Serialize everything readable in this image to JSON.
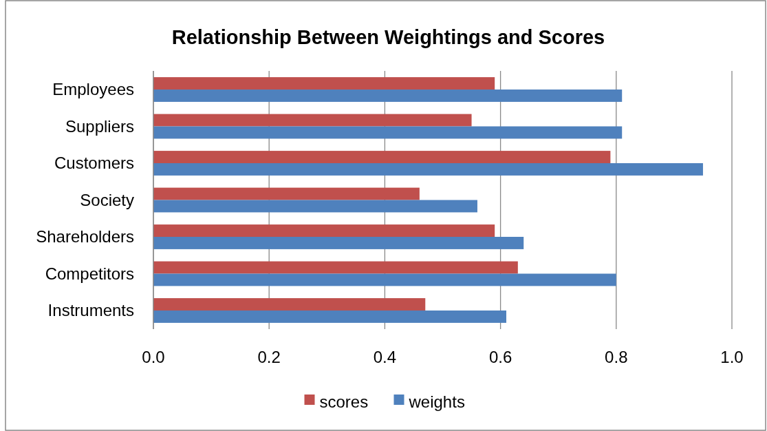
{
  "chart_data": {
    "type": "bar",
    "orientation": "horizontal",
    "title": "Relationship Between Weightings and Scores",
    "categories": [
      "Employees",
      "Suppliers",
      "Customers",
      "Society",
      "Shareholders",
      "Competitors",
      "Instruments"
    ],
    "series": [
      {
        "name": "scores",
        "color": "#c0504d",
        "values": [
          0.59,
          0.55,
          0.79,
          0.46,
          0.59,
          0.63,
          0.47
        ]
      },
      {
        "name": "weights",
        "color": "#4f81bd",
        "values": [
          0.81,
          0.81,
          0.95,
          0.56,
          0.64,
          0.8,
          0.61
        ]
      }
    ],
    "xlim": [
      0,
      1
    ],
    "xticks": [
      {
        "value": 0,
        "label": "0.0"
      },
      {
        "value": 0.2,
        "label": "0.2"
      },
      {
        "value": 0.4,
        "label": "0.4"
      },
      {
        "value": 0.6,
        "label": "0.6"
      },
      {
        "value": 0.8,
        "label": "0.8"
      },
      {
        "value": 1,
        "label": "1.0"
      }
    ],
    "grid": "x",
    "legend": "bottom"
  }
}
